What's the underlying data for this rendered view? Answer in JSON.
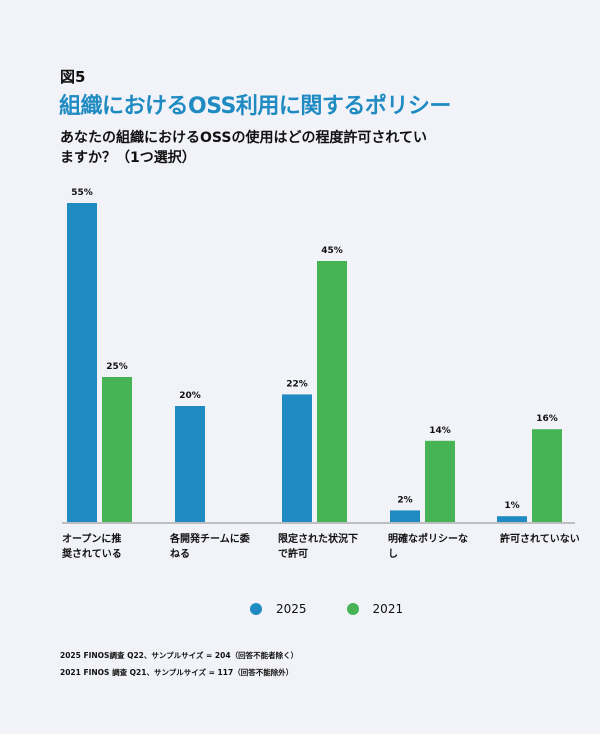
{
  "figure_label": "図5",
  "chart_data": {
    "type": "bar",
    "title": "組織におけるOSS利用に関するポリシー",
    "subtitle": "あなたの組織におけるOSSの使用はどの程度許可されていますか？（1つ選択）",
    "categories": [
      "オープンに推奨されている",
      "各開発チームに委ねる",
      "限定された状況下で許可",
      "明確なポリシーなし",
      "許可されていない"
    ],
    "series": [
      {
        "name": "2025",
        "color": "#1f8bc2",
        "values": [
          55,
          20,
          22,
          2,
          1
        ],
        "labels": [
          "55%",
          "20%",
          "22%",
          "2%",
          "1%"
        ]
      },
      {
        "name": "2021",
        "color": "#46b455",
        "values": [
          25,
          null,
          45,
          14,
          16
        ],
        "labels": [
          "25%",
          null,
          "45%",
          "14%",
          "16%"
        ]
      }
    ],
    "ylim": [
      0,
      55
    ],
    "grid": false,
    "legend": "bottom-center"
  },
  "notes": [
    "2025 FINOS調査 Q22、サンプルサイズ = 204（回答不能者除く）",
    "2021 FINOS 調査 Q21、サンプルサイズ = 117（回答不能除外）"
  ]
}
